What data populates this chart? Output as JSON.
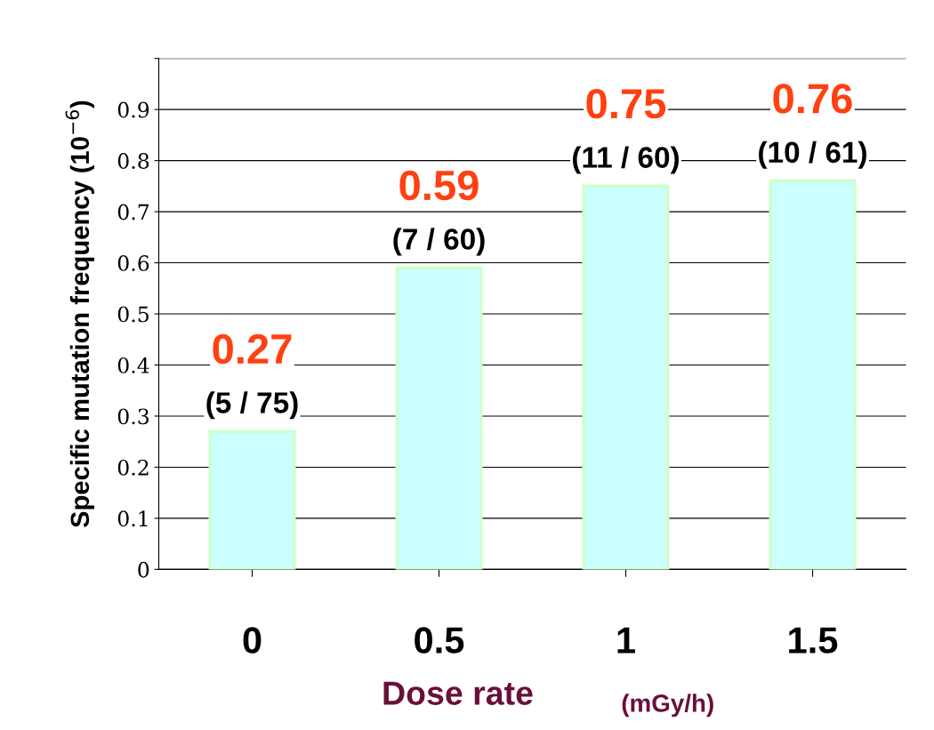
{
  "chart_data": {
    "type": "bar",
    "categories": [
      "0",
      "0.5",
      "1",
      "1.5"
    ],
    "values": [
      0.27,
      0.59,
      0.75,
      0.76
    ],
    "color": "#ccffff",
    "data_labels": true,
    "ylabel": "Specific mutation frequency (10$^{−6}$)",
    "xlabel": "Dose rate",
    "ylim": [
      0,
      1.0
    ],
    "yticks": [
      0,
      0.1,
      0.2,
      0.3,
      0.4,
      0.5,
      0.6,
      0.7,
      0.8,
      0.9,
      {
        "value": 1.0,
        "label": null
      }
    ],
    "grid": "y",
    "annotations": [
      {
        "text": "(5 / 75)",
        "x": "0",
        "y": 0.27
      },
      {
        "text": "(7 / 60)",
        "x": "0.5",
        "y": 0.59
      },
      {
        "text": "(11 / 60)",
        "x": "1",
        "y": 0.75
      },
      {
        "text": "(10 / 61)",
        "x": "1.5",
        "y": 0.76
      },
      "(mGy/h)"
    ]
  }
}
